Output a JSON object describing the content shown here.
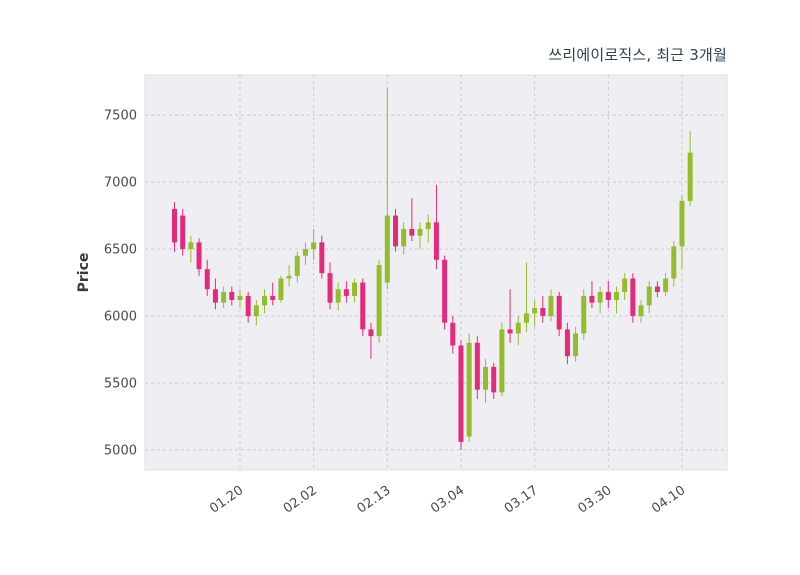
{
  "chart": {
    "title": "쓰리에이로직스, 최근 3개월",
    "ylabel": "Price"
  },
  "chart_data": {
    "type": "candlestick",
    "title": "쓰리에이로직스, 최근 3개월",
    "xlabel": "",
    "ylabel": "Price",
    "ylim": [
      4850,
      7800
    ],
    "yticks": [
      5000,
      5500,
      6000,
      6500,
      7000,
      7500
    ],
    "xticks": [
      {
        "index": 8,
        "label": "01.20"
      },
      {
        "index": 17,
        "label": "02.02"
      },
      {
        "index": 26,
        "label": "02.13"
      },
      {
        "index": 35,
        "label": "03.04"
      },
      {
        "index": 44,
        "label": "03.17"
      },
      {
        "index": 53,
        "label": "03.30"
      },
      {
        "index": 62,
        "label": "04.10"
      }
    ],
    "grid": true,
    "legend": "none",
    "up_color": "#94bd2b",
    "down_color": "#e42a7d",
    "plot_bg_color": "#efeff3",
    "grid_color": "#c9c9d4",
    "tick_color": "#4a4a4a",
    "title_color": "#2e4256",
    "candles_format": [
      "open",
      "high",
      "low",
      "close"
    ],
    "candles": [
      [
        6800,
        6850,
        6480,
        6550
      ],
      [
        6750,
        6800,
        6450,
        6500
      ],
      [
        6500,
        6600,
        6400,
        6550
      ],
      [
        6550,
        6580,
        6300,
        6350
      ],
      [
        6350,
        6420,
        6150,
        6200
      ],
      [
        6200,
        6280,
        6050,
        6100
      ],
      [
        6100,
        6220,
        6060,
        6180
      ],
      [
        6180,
        6220,
        6080,
        6120
      ],
      [
        6120,
        6200,
        6060,
        6150
      ],
      [
        6150,
        6180,
        5950,
        6000
      ],
      [
        6000,
        6120,
        5930,
        6080
      ],
      [
        6080,
        6200,
        6020,
        6150
      ],
      [
        6150,
        6250,
        6080,
        6120
      ],
      [
        6120,
        6300,
        6100,
        6280
      ],
      [
        6280,
        6380,
        6220,
        6300
      ],
      [
        6300,
        6480,
        6250,
        6450
      ],
      [
        6450,
        6550,
        6380,
        6500
      ],
      [
        6500,
        6650,
        6420,
        6550
      ],
      [
        6550,
        6600,
        6280,
        6320
      ],
      [
        6320,
        6400,
        6050,
        6100
      ],
      [
        6100,
        6250,
        6040,
        6200
      ],
      [
        6200,
        6260,
        6100,
        6150
      ],
      [
        6150,
        6280,
        6100,
        6250
      ],
      [
        6250,
        6280,
        5850,
        5900
      ],
      [
        5900,
        5950,
        5680,
        5850
      ],
      [
        5850,
        6420,
        5800,
        6380
      ],
      [
        6250,
        7700,
        6200,
        6750
      ],
      [
        6750,
        6800,
        6480,
        6520
      ],
      [
        6520,
        6700,
        6460,
        6650
      ],
      [
        6650,
        6880,
        6560,
        6600
      ],
      [
        6600,
        6700,
        6500,
        6650
      ],
      [
        6650,
        6760,
        6550,
        6700
      ],
      [
        6700,
        6980,
        6350,
        6420
      ],
      [
        6420,
        6450,
        5900,
        5950
      ],
      [
        5950,
        6000,
        5720,
        5780
      ],
      [
        5780,
        5820,
        5000,
        5060
      ],
      [
        5100,
        5870,
        5060,
        5800
      ],
      [
        5800,
        5850,
        5380,
        5450
      ],
      [
        5450,
        5680,
        5350,
        5620
      ],
      [
        5620,
        5650,
        5380,
        5430
      ],
      [
        5430,
        5950,
        5400,
        5900
      ],
      [
        5900,
        6200,
        5800,
        5870
      ],
      [
        5870,
        6000,
        5780,
        5950
      ],
      [
        5950,
        6400,
        5880,
        6020
      ],
      [
        6020,
        6120,
        5920,
        6060
      ],
      [
        6060,
        6150,
        5950,
        6000
      ],
      [
        6000,
        6200,
        5960,
        6150
      ],
      [
        6150,
        6180,
        5850,
        5900
      ],
      [
        5900,
        5950,
        5640,
        5700
      ],
      [
        5700,
        5920,
        5660,
        5870
      ],
      [
        5870,
        6200,
        5820,
        6150
      ],
      [
        6150,
        6260,
        6060,
        6100
      ],
      [
        6100,
        6220,
        6020,
        6180
      ],
      [
        6180,
        6260,
        6060,
        6120
      ],
      [
        6120,
        6220,
        6020,
        6180
      ],
      [
        6180,
        6320,
        6120,
        6280
      ],
      [
        6280,
        6320,
        5950,
        6000
      ],
      [
        6000,
        6120,
        5950,
        6080
      ],
      [
        6080,
        6260,
        6020,
        6220
      ],
      [
        6220,
        6260,
        6140,
        6180
      ],
      [
        6180,
        6320,
        6150,
        6280
      ],
      [
        6280,
        6560,
        6220,
        6520
      ],
      [
        6520,
        6900,
        6350,
        6860
      ],
      [
        6860,
        7380,
        6820,
        7220
      ]
    ]
  }
}
